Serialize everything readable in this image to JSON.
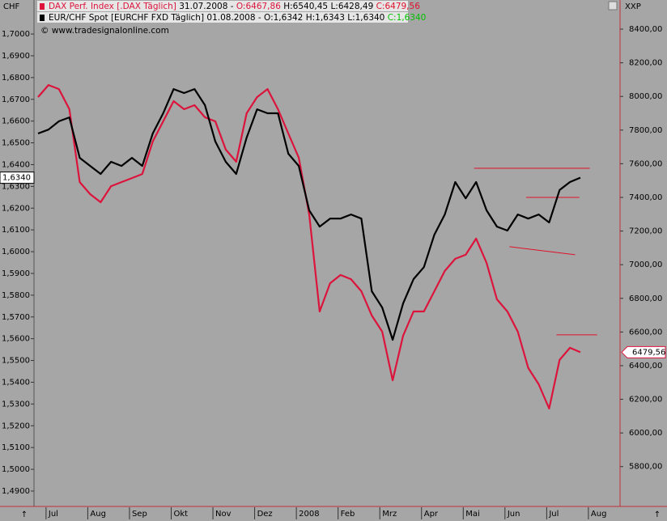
{
  "chart_data": {
    "type": "line",
    "y_unit": "CHF",
    "y2_unit": "XXP",
    "copyright": "© www.tradesignalonline.com",
    "categories": [
      null,
      "Jul",
      null,
      null,
      null,
      "Aug",
      null,
      null,
      null,
      "Sep",
      null,
      null,
      null,
      "Okt",
      null,
      null,
      null,
      "Nov",
      null,
      null,
      null,
      "Dez",
      null,
      null,
      null,
      "2008",
      null,
      null,
      null,
      "Feb",
      null,
      null,
      null,
      "Mrz",
      null,
      null,
      null,
      "Apr",
      null,
      null,
      null,
      "Mai",
      null,
      null,
      null,
      "Jun",
      null,
      null,
      null,
      "Jul",
      null,
      null,
      null,
      "Aug"
    ],
    "series": [
      {
        "name": "DAX Perf. Index [.DAX  Täglich]",
        "date": "31.07.2008 -",
        "ohlc": [
          "O:6467,86",
          "H:6540,45",
          "L:6428,49",
          "C:6479,56"
        ],
        "close_color": "#e0102a",
        "last_label": "6479,56",
        "color": "#dc143c",
        "axis": "y2",
        "values": [
          7996,
          8068,
          8044,
          7924,
          7491,
          7419,
          7371,
          7467,
          7491,
          7515,
          7539,
          7732,
          7852,
          7972,
          7924,
          7948,
          7876,
          7852,
          7684,
          7612,
          7900,
          7996,
          8044,
          7924,
          7780,
          7636,
          7299,
          6722,
          6890,
          6939,
          6914,
          6842,
          6698,
          6602,
          6313,
          6578,
          6722,
          6722,
          6842,
          6963,
          7035,
          7059,
          7155,
          7011,
          6794,
          6722,
          6602,
          6386,
          6289,
          6145,
          6434,
          6506,
          6479.56,
          null
        ]
      },
      {
        "name": "EUR/CHF Spot [EURCHF FXD  Täglich]",
        "date": "01.08.2008 -",
        "ohlc": [
          "O:1,6342",
          "H:1,6343",
          "L:1,6340",
          "C:1,6340"
        ],
        "close_color": "#00c000",
        "last_label": "1,6340",
        "color": "#000000",
        "values": [
          1.6543,
          1.6561,
          1.6599,
          1.6617,
          1.6431,
          1.6394,
          1.6357,
          1.6413,
          1.6394,
          1.6431,
          1.6394,
          1.6543,
          1.6636,
          1.6747,
          1.6729,
          1.6747,
          1.6673,
          1.6506,
          1.6413,
          1.6357,
          1.6524,
          1.6654,
          1.6636,
          1.6636,
          1.645,
          1.6394,
          1.619,
          1.6115,
          1.6152,
          1.6152,
          1.6171,
          1.6152,
          1.5818,
          1.5743,
          1.5595,
          1.5762,
          1.5874,
          1.5929,
          1.6078,
          1.6171,
          1.632,
          1.6245,
          1.632,
          1.619,
          1.6115,
          1.6097,
          1.6171,
          1.6152,
          1.6171,
          1.6134,
          1.6283,
          1.632,
          1.634,
          null
        ]
      }
    ],
    "trend_lines": {
      "color": "#e0102a",
      "lines": [
        {
          "x": [
            41.8,
            52.9
          ],
          "y": [
            7573,
            7573
          ]
        },
        {
          "x": [
            46.8,
            51.9
          ],
          "y": [
            7400,
            7400
          ]
        },
        {
          "x": [
            45.2,
            51.5
          ],
          "y": [
            7107,
            7059
          ]
        },
        {
          "x": [
            49.7,
            53.6
          ],
          "y": [
            6583,
            6583
          ]
        }
      ]
    },
    "ylim": [
      1.4833,
      1.7082
    ],
    "yticks": [
      {
        "value": 1.49,
        "label": "1,4900"
      },
      {
        "value": 1.5,
        "label": "1,5000"
      },
      {
        "value": 1.51,
        "label": "1,5100"
      },
      {
        "value": 1.52,
        "label": "1,5200"
      },
      {
        "value": 1.53,
        "label": "1,5300"
      },
      {
        "value": 1.54,
        "label": "1,5400"
      },
      {
        "value": 1.55,
        "label": "1,5500"
      },
      {
        "value": 1.56,
        "label": "1,5600"
      },
      {
        "value": 1.57,
        "label": "1,5700"
      },
      {
        "value": 1.58,
        "label": "1,5800"
      },
      {
        "value": 1.59,
        "label": "1,5900"
      },
      {
        "value": 1.6,
        "label": "1,6000"
      },
      {
        "value": 1.61,
        "label": "1,6100"
      },
      {
        "value": 1.62,
        "label": "1,6200"
      },
      {
        "value": 1.63,
        "label": "1,6300"
      },
      {
        "value": 1.64,
        "label": "1,6400"
      },
      {
        "value": 1.65,
        "label": "1,6500"
      },
      {
        "value": 1.66,
        "label": "1,6600"
      },
      {
        "value": 1.67,
        "label": "1,6700"
      },
      {
        "value": 1.68,
        "label": "1,6800"
      },
      {
        "value": 1.69,
        "label": "1,6900"
      },
      {
        "value": 1.7,
        "label": "1,7000"
      }
    ],
    "y2lim": [
      5568,
      8477
    ],
    "y2ticks": [
      {
        "value": 5800,
        "label": "5800,00"
      },
      {
        "value": 6000,
        "label": "6000,00"
      },
      {
        "value": 6200,
        "label": "6200,00"
      },
      {
        "value": 6400,
        "label": "6400,00"
      },
      {
        "value": 6600,
        "label": "6600,00"
      },
      {
        "value": 6800,
        "label": "6800,00"
      },
      {
        "value": 7000,
        "label": "7000,00"
      },
      {
        "value": 7200,
        "label": "7200,00"
      },
      {
        "value": 7400,
        "label": "7400,00"
      },
      {
        "value": 7600,
        "label": "7600,00"
      },
      {
        "value": 7800,
        "label": "7800,00"
      },
      {
        "value": 8000,
        "label": "8000,00"
      },
      {
        "value": 8200,
        "label": "8200,00"
      },
      {
        "value": 8400,
        "label": "8400,00"
      }
    ],
    "grid": false
  }
}
